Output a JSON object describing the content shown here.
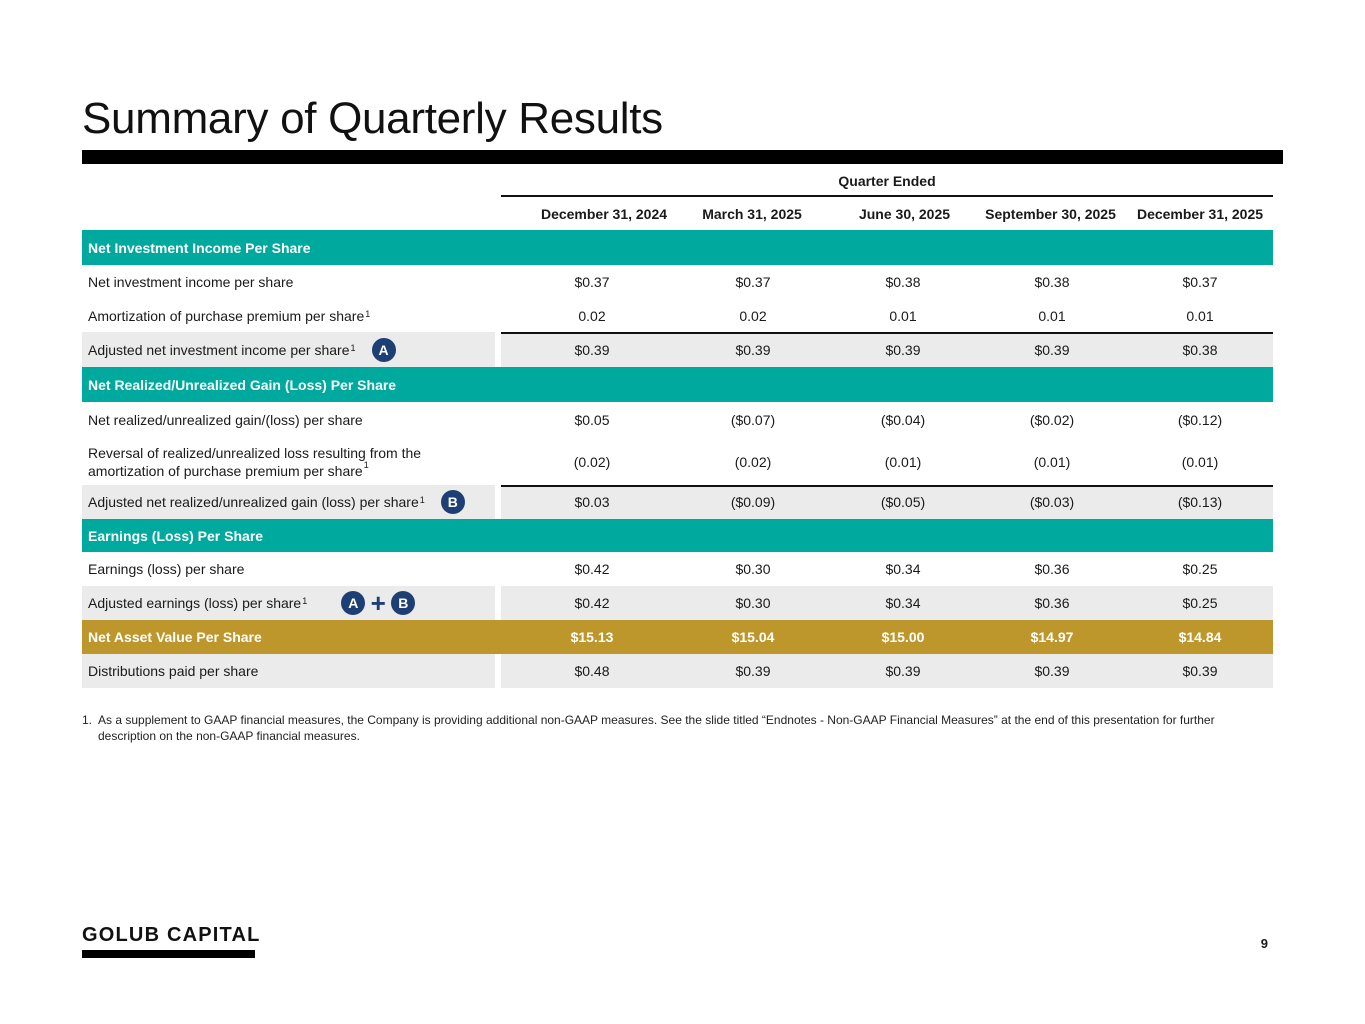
{
  "page": {
    "title": "Summary of Quarterly Results",
    "page_number": "9",
    "logo_text": "GOLUB CAPITAL"
  },
  "table": {
    "group_header": "Quarter Ended",
    "columns": [
      "December 31, 2024",
      "March 31, 2025",
      "June 30, 2025",
      "September 30, 2025",
      "December 31, 2025"
    ],
    "section_nii": "Net Investment Income Per Share",
    "row_nii": {
      "label": "Net investment income per share",
      "values": [
        "$0.37",
        "$0.37",
        "$0.38",
        "$0.38",
        "$0.37"
      ]
    },
    "row_amort": {
      "label": "Amortization of purchase premium per share",
      "sup": "1",
      "values": [
        "0.02",
        "0.02",
        "0.01",
        "0.01",
        "0.01"
      ]
    },
    "row_adj_nii": {
      "label": "Adjusted net investment income per share",
      "sup": "1",
      "badge": "A",
      "values": [
        "$0.39",
        "$0.39",
        "$0.39",
        "$0.39",
        "$0.38"
      ]
    },
    "section_gain": "Net Realized/Unrealized Gain (Loss) Per Share",
    "row_gain": {
      "label": "Net realized/unrealized gain/(loss) per share",
      "values": [
        "$0.05",
        "($0.07)",
        "($0.04)",
        "($0.02)",
        "($0.12)"
      ]
    },
    "row_reversal": {
      "label_line1": "Reversal of realized/unrealized loss resulting from the",
      "label_line2": "amortization of purchase premium per share",
      "sup": "1",
      "values": [
        "(0.02)",
        "(0.02)",
        "(0.01)",
        "(0.01)",
        "(0.01)"
      ]
    },
    "row_adj_gain": {
      "label": "Adjusted net realized/unrealized gain (loss) per share",
      "sup": "1",
      "badge": "B",
      "values": [
        "$0.03",
        "($0.09)",
        "($0.05)",
        "($0.03)",
        "($0.13)"
      ]
    },
    "section_eps": "Earnings (Loss) Per Share",
    "row_eps": {
      "label": "Earnings (loss) per share",
      "values": [
        "$0.42",
        "$0.30",
        "$0.34",
        "$0.36",
        "$0.25"
      ]
    },
    "row_adj_eps": {
      "label": "Adjusted earnings (loss) per share",
      "sup": "1",
      "badge_a": "A",
      "badge_b": "B",
      "values": [
        "$0.42",
        "$0.30",
        "$0.34",
        "$0.36",
        "$0.25"
      ]
    },
    "row_nav": {
      "label": "Net Asset Value Per Share",
      "values": [
        "$15.13",
        "$15.04",
        "$15.00",
        "$14.97",
        "$14.84"
      ]
    },
    "row_dist": {
      "label": "Distributions paid per share",
      "values": [
        "$0.48",
        "$0.39",
        "$0.39",
        "$0.39",
        "$0.39"
      ]
    }
  },
  "footnote": {
    "number": "1.",
    "text": "As a supplement to GAAP financial measures, the Company is providing additional non-GAAP measures. See the slide titled “Endnotes - Non-GAAP Financial Measures” at the end of this presentation for further description on the non-GAAP financial measures."
  },
  "colors": {
    "section_teal": "#00a99d",
    "nav_gold": "#bd962c",
    "badge_navy": "#1e3f73",
    "row_gray": "#ebebeb"
  }
}
